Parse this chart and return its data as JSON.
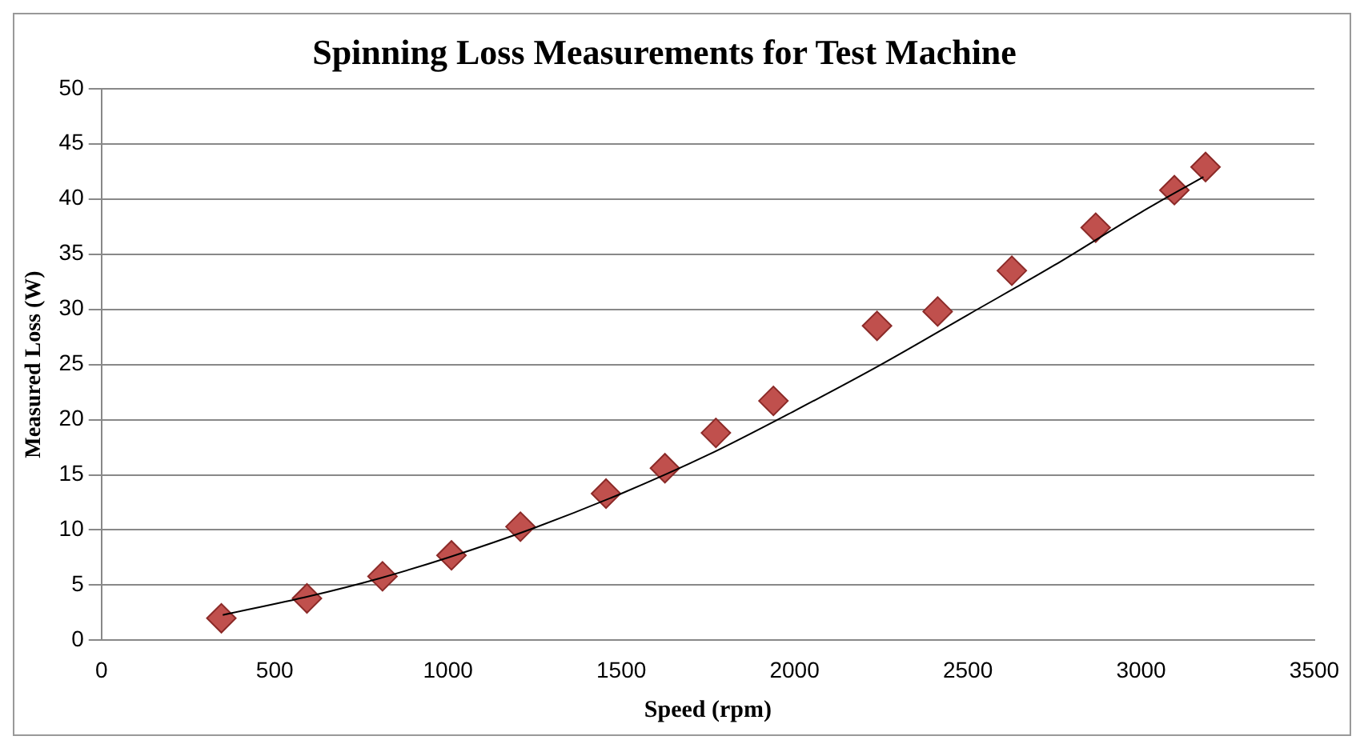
{
  "chart_data": {
    "type": "scatter",
    "title": "Spinning Loss Measurements for Test Machine",
    "xlabel": "Speed (rpm)",
    "ylabel": "Measured Loss (W)",
    "xlim": [
      0,
      3500
    ],
    "xticks": [
      0,
      500,
      1000,
      1500,
      2000,
      2500,
      3000,
      3500
    ],
    "ylim": [
      0,
      50
    ],
    "yticks": [
      0,
      5,
      10,
      15,
      20,
      25,
      30,
      35,
      40,
      45,
      50
    ],
    "grid": "y",
    "marker": "diamond",
    "series": [
      {
        "type": "scatter",
        "color": "#c0504d",
        "x": [
          346,
          593,
          811,
          1010,
          1209,
          1456,
          1626,
          1773,
          1939,
          2238,
          2413,
          2627,
          2869,
          3096,
          3186
        ],
        "values": [
          2.0,
          3.8,
          5.8,
          7.7,
          10.3,
          13.3,
          15.6,
          18.8,
          21.7,
          28.5,
          29.8,
          33.5,
          37.4,
          40.8,
          42.9
        ]
      },
      {
        "type": "line",
        "color": "#000000",
        "marker": "none",
        "x": [
          350,
          600,
          800,
          1000,
          1250,
          1500,
          1750,
          2000,
          2250,
          2500,
          2750,
          3000,
          3180
        ],
        "values": [
          2.3,
          4.0,
          5.6,
          7.5,
          10.2,
          13.3,
          16.8,
          20.8,
          25.0,
          29.5,
          34.0,
          38.8,
          42.0
        ]
      }
    ]
  }
}
